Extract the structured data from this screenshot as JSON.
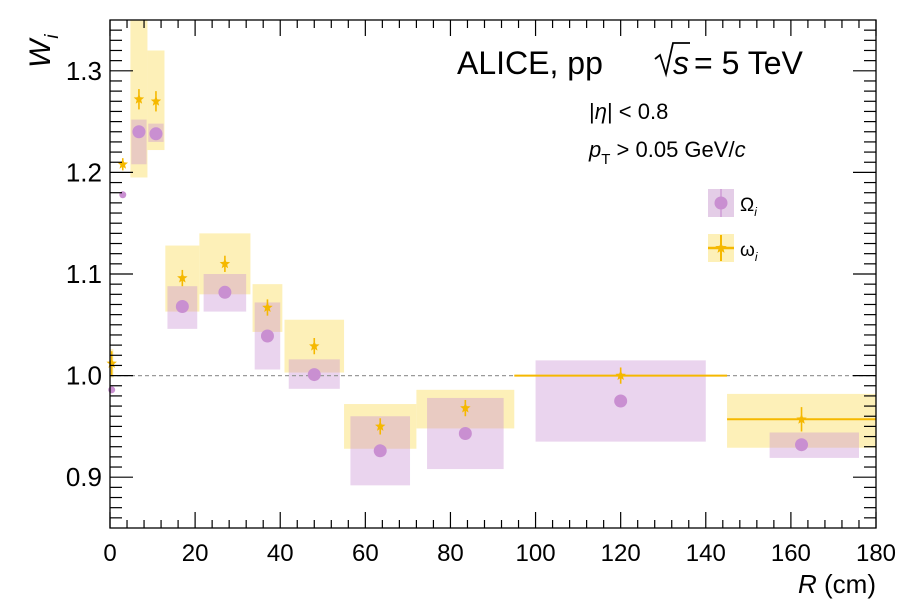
{
  "chart_data": {
    "type": "scatter",
    "title": "ALICE,  pp",
    "title_energy": "= 5 TeV",
    "title_sqrt_var": "s",
    "cuts": {
      "eta_prefix": "|",
      "eta_var": "η",
      "eta_suffix": "| < 0.8",
      "pt_var": "p",
      "pt_sub": "T",
      "pt_suffix": " > 0.05 GeV/",
      "pt_unit_var": "c"
    },
    "ylabel": "W",
    "ylabel_sub": "i",
    "xlabel_var": "R",
    "xlabel_unit": " (cm)",
    "xlim": [
      0,
      180
    ],
    "ylim": [
      0.85,
      1.35
    ],
    "xticks": [
      "0",
      "20",
      "40",
      "60",
      "80",
      "100",
      "120",
      "140",
      "160",
      "180"
    ],
    "yticks": [
      "0.9",
      "1.0",
      "1.1",
      "1.2",
      "1.3"
    ],
    "reference_line": 1.0,
    "legend": {
      "position": "upper-right",
      "entries": [
        {
          "symbol": "Ω",
          "sub": "i"
        },
        {
          "symbol": "ω",
          "sub": "i"
        }
      ]
    },
    "colors": {
      "Omega_box": "#e4cde7",
      "Omega_marker": "#c98fd1",
      "omega_box": "#fdf0b8",
      "omega_marker": "#f5b800",
      "reference": "#9a9a9a"
    },
    "series": [
      {
        "name": "Omega_i",
        "points": [
          {
            "x": 0.4,
            "y": 0.986,
            "x_lo": 0.0,
            "x_hi": 0.8,
            "sys_lo": 0.986,
            "sys_hi": 0.986
          },
          {
            "x": 3.0,
            "y": 1.178,
            "x_lo": 2.6,
            "x_hi": 3.4,
            "sys_lo": 1.178,
            "sys_hi": 1.178
          },
          {
            "x": 6.8,
            "y": 1.24,
            "x_lo": 5.0,
            "x_hi": 8.6,
            "sys_lo": 1.208,
            "sys_hi": 1.252
          },
          {
            "x": 10.8,
            "y": 1.238,
            "x_lo": 9.0,
            "x_hi": 12.6,
            "sys_lo": 1.23,
            "sys_hi": 1.248
          },
          {
            "x": 17.0,
            "y": 1.068,
            "x_lo": 13.5,
            "x_hi": 20.5,
            "sys_lo": 1.046,
            "sys_hi": 1.088
          },
          {
            "x": 27.0,
            "y": 1.082,
            "x_lo": 22.0,
            "x_hi": 32.0,
            "sys_lo": 1.063,
            "sys_hi": 1.1
          },
          {
            "x": 37.0,
            "y": 1.039,
            "x_lo": 34.0,
            "x_hi": 40.0,
            "sys_lo": 1.006,
            "sys_hi": 1.072
          },
          {
            "x": 48.0,
            "y": 1.001,
            "x_lo": 42.0,
            "x_hi": 54.0,
            "sys_lo": 0.987,
            "sys_hi": 1.016
          },
          {
            "x": 63.5,
            "y": 0.926,
            "x_lo": 56.5,
            "x_hi": 70.5,
            "sys_lo": 0.892,
            "sys_hi": 0.96
          },
          {
            "x": 83.5,
            "y": 0.943,
            "x_lo": 74.5,
            "x_hi": 92.5,
            "sys_lo": 0.908,
            "sys_hi": 0.978
          },
          {
            "x": 120.0,
            "y": 0.975,
            "x_lo": 100.0,
            "x_hi": 140.0,
            "sys_lo": 0.935,
            "sys_hi": 1.015
          },
          {
            "x": 162.5,
            "y": 0.932,
            "x_lo": 155.0,
            "x_hi": 176.0,
            "sys_lo": 0.919,
            "sys_hi": 0.944
          }
        ]
      },
      {
        "name": "omega_i",
        "points": [
          {
            "x": 0.4,
            "y": 1.012,
            "x_lo": 0.0,
            "x_hi": 0.8,
            "sys_lo": 0.998,
            "sys_hi": 1.026,
            "stat": 0.012
          },
          {
            "x": 3.0,
            "y": 1.208,
            "x_lo": 2.6,
            "x_hi": 3.4,
            "sys_lo": 1.208,
            "sys_hi": 1.208,
            "stat": 0.006
          },
          {
            "x": 6.8,
            "y": 1.272,
            "x_lo": 4.8,
            "x_hi": 8.8,
            "sys_lo": 1.195,
            "sys_hi": 1.35,
            "stat": 0.01
          },
          {
            "x": 10.8,
            "y": 1.27,
            "x_lo": 8.8,
            "x_hi": 12.8,
            "sys_lo": 1.222,
            "sys_hi": 1.32,
            "stat": 0.01
          },
          {
            "x": 17.0,
            "y": 1.096,
            "x_lo": 13.0,
            "x_hi": 21.0,
            "sys_lo": 1.063,
            "sys_hi": 1.128,
            "stat": 0.008
          },
          {
            "x": 27.0,
            "y": 1.11,
            "x_lo": 21.0,
            "x_hi": 33.0,
            "sys_lo": 1.08,
            "sys_hi": 1.14,
            "stat": 0.008
          },
          {
            "x": 37.0,
            "y": 1.067,
            "x_lo": 33.5,
            "x_hi": 40.5,
            "sys_lo": 1.043,
            "sys_hi": 1.09,
            "stat": 0.008
          },
          {
            "x": 48.0,
            "y": 1.029,
            "x_lo": 41.0,
            "x_hi": 55.0,
            "sys_lo": 1.003,
            "sys_hi": 1.055,
            "stat": 0.008
          },
          {
            "x": 63.5,
            "y": 0.95,
            "x_lo": 55.0,
            "x_hi": 72.0,
            "sys_lo": 0.928,
            "sys_hi": 0.972,
            "stat": 0.008
          },
          {
            "x": 83.5,
            "y": 0.968,
            "x_lo": 72.0,
            "x_hi": 95.0,
            "sys_lo": 0.948,
            "sys_hi": 0.986,
            "stat": 0.008
          },
          {
            "x": 120.0,
            "y": 1.0,
            "x_lo": 95.0,
            "x_hi": 145.0,
            "sys_lo": 0.999,
            "sys_hi": 1.001,
            "stat": 0.008
          },
          {
            "x": 162.5,
            "y": 0.957,
            "x_lo": 145.0,
            "x_hi": 180.0,
            "sys_lo": 0.929,
            "sys_hi": 0.982,
            "stat": 0.012
          }
        ]
      }
    ]
  }
}
